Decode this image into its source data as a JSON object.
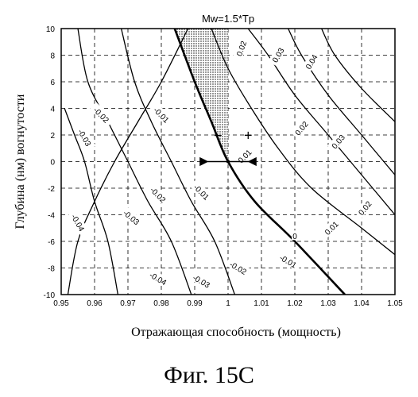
{
  "figure": {
    "caption": "Фиг. 15C"
  },
  "chart_data": {
    "type": "line",
    "subtype": "contour",
    "title": "Mw=1.5*Tp",
    "xlabel": "Отражающая способность (мощность)",
    "ylabel": "Глубина (нм) вогнутости",
    "xlim": [
      0.95,
      1.05
    ],
    "ylim": [
      -10,
      10
    ],
    "xticks": [
      "0.95",
      "0.96",
      "0.97",
      "0.98",
      "0.99",
      "1",
      "1.01",
      "1.02",
      "1.03",
      "1.04",
      "1.05"
    ],
    "yticks": [
      "10",
      "8",
      "6",
      "4",
      "2",
      "0",
      "-2",
      "-4",
      "-6",
      "-8",
      "-10"
    ],
    "grid": true,
    "series": [
      {
        "name": "-0.04",
        "points": [
          [
            0.952,
            -10
          ],
          [
            0.955,
            -6
          ],
          [
            0.96,
            -3
          ],
          [
            0.966,
            0
          ],
          [
            0.973,
            3
          ],
          [
            0.98,
            6
          ],
          [
            0.988,
            10
          ]
        ]
      },
      {
        "name": "-0.03",
        "points": [
          [
            0.967,
            -10
          ],
          [
            0.964,
            -6
          ],
          [
            0.96,
            -3
          ],
          [
            0.957,
            0
          ],
          [
            0.954,
            2
          ],
          [
            0.951,
            4
          ]
        ]
      },
      {
        "name": "-0.02",
        "points": [
          [
            0.989,
            -10
          ],
          [
            0.983,
            -6
          ],
          [
            0.976,
            -3
          ],
          [
            0.97,
            0
          ],
          [
            0.964,
            3
          ],
          [
            0.958,
            6
          ],
          [
            0.955,
            10
          ]
        ]
      },
      {
        "name": "-0.01",
        "points": [
          [
            1.002,
            -10
          ],
          [
            0.996,
            -6
          ],
          [
            0.989,
            -3
          ],
          [
            0.983,
            0
          ],
          [
            0.977,
            3
          ],
          [
            0.972,
            6
          ],
          [
            0.968,
            10
          ]
        ]
      },
      {
        "name": "0",
        "thick": true,
        "points": [
          [
            1.035,
            -10
          ],
          [
            1.02,
            -6
          ],
          [
            1.008,
            -3
          ],
          [
            1.0,
            0
          ],
          [
            0.995,
            3
          ],
          [
            0.99,
            6
          ],
          [
            0.984,
            10
          ]
        ]
      },
      {
        "name": "0.01",
        "points": [
          [
            1.05,
            -7
          ],
          [
            1.04,
            -5
          ],
          [
            1.025,
            -2
          ],
          [
            1.015,
            1
          ],
          [
            1.007,
            4
          ],
          [
            1.0,
            7
          ],
          [
            0.995,
            10
          ]
        ]
      },
      {
        "name": "0.02",
        "points": [
          [
            1.05,
            -4
          ],
          [
            1.04,
            -1
          ],
          [
            1.03,
            2
          ],
          [
            1.02,
            5
          ],
          [
            1.012,
            8
          ],
          [
            1.006,
            10
          ]
        ]
      },
      {
        "name": "0.03",
        "points": [
          [
            1.05,
            -1
          ],
          [
            1.04,
            2
          ],
          [
            1.03,
            5
          ],
          [
            1.022,
            8
          ],
          [
            1.018,
            10
          ]
        ]
      },
      {
        "name": "0.04",
        "points": [
          [
            1.05,
            3
          ],
          [
            1.04,
            5.5
          ],
          [
            1.032,
            8
          ],
          [
            1.028,
            10
          ]
        ]
      }
    ],
    "contour_labels": [
      {
        "text": "-0.04",
        "x": 0.955,
        "y": -4.6,
        "rot": 60
      },
      {
        "text": "-0.04",
        "x": 0.979,
        "y": -8.8,
        "rot": 30
      },
      {
        "text": "-0.03",
        "x": 0.957,
        "y": 1.8,
        "rot": 60
      },
      {
        "text": "-0.03",
        "x": 0.971,
        "y": -4.2,
        "rot": 40
      },
      {
        "text": "-0.03",
        "x": 0.992,
        "y": -9.0,
        "rot": 30
      },
      {
        "text": "-0.02",
        "x": 0.962,
        "y": 3.5,
        "rot": 45
      },
      {
        "text": "-0.02",
        "x": 0.979,
        "y": -2.5,
        "rot": 45
      },
      {
        "text": "-0.02",
        "x": 1.003,
        "y": -8.0,
        "rot": 30
      },
      {
        "text": "-0.01",
        "x": 0.98,
        "y": 3.5,
        "rot": 45
      },
      {
        "text": "-0.01",
        "x": 0.992,
        "y": -2.3,
        "rot": 45
      },
      {
        "text": "-0.01",
        "x": 1.018,
        "y": -7.5,
        "rot": 30
      },
      {
        "text": "0",
        "x": 1.02,
        "y": -5.6,
        "rot": 0
      },
      {
        "text": "0.01",
        "x": 1.005,
        "y": 0.4,
        "rot": -45
      },
      {
        "text": "0.01",
        "x": 1.031,
        "y": -5.0,
        "rot": -45
      },
      {
        "text": "0.02",
        "x": 1.004,
        "y": 8.5,
        "rot": -70
      },
      {
        "text": "0.02",
        "x": 1.022,
        "y": 2.5,
        "rot": -50
      },
      {
        "text": "0.02",
        "x": 1.041,
        "y": -3.5,
        "rot": -50
      },
      {
        "text": "0.03",
        "x": 1.015,
        "y": 8.0,
        "rot": -60
      },
      {
        "text": "0.03",
        "x": 1.033,
        "y": 1.5,
        "rot": -50
      },
      {
        "text": "0.04",
        "x": 1.025,
        "y": 7.5,
        "rot": -60
      }
    ],
    "shaded_region": {
      "x": [
        0.984,
        1.0
      ],
      "y_top": 10,
      "boundary": "0"
    },
    "annotations": [
      {
        "text": "−",
        "x": 0.997,
        "y": 1.6
      },
      {
        "text": "+",
        "x": 1.006,
        "y": 1.6
      }
    ]
  }
}
